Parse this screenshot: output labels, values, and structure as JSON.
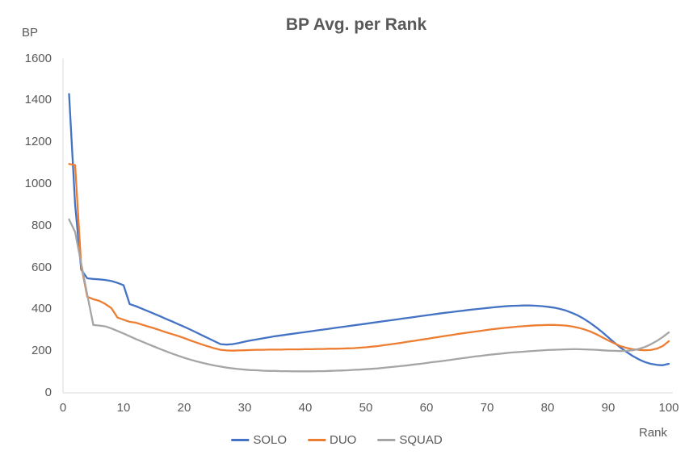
{
  "chart_data": {
    "type": "line",
    "title": "BP Avg. per Rank",
    "y_axis_title": "BP",
    "x_axis_title": "Rank",
    "xlabel": "Rank",
    "ylabel": "BP",
    "xlim": [
      0,
      100
    ],
    "ylim": [
      0,
      1600
    ],
    "x_ticks": [
      0,
      10,
      20,
      30,
      40,
      50,
      60,
      70,
      80,
      90,
      100
    ],
    "y_ticks": [
      0,
      200,
      400,
      600,
      800,
      1000,
      1200,
      1400,
      1600
    ],
    "grid": false,
    "legend_position": "bottom-center",
    "x_start": 1,
    "x_step": 1,
    "series": [
      {
        "name": "SOLO",
        "color": "#4472C4",
        "values": [
          1430,
          900,
          590,
          548,
          545,
          543,
          540,
          535,
          526,
          515,
          425,
          415,
          403,
          391,
          379,
          367,
          354,
          342,
          329,
          316,
          303,
          289,
          275,
          261,
          247,
          233,
          231,
          233,
          238,
          245,
          251,
          256,
          261,
          266,
          271,
          275,
          279,
          283,
          287,
          291,
          295,
          299,
          303,
          307,
          311,
          315,
          319,
          323,
          327,
          331,
          335,
          339,
          343,
          347,
          351,
          355,
          359,
          363,
          367,
          371,
          375,
          379,
          383,
          386,
          390,
          393,
          397,
          400,
          403,
          406,
          409,
          412,
          414,
          416,
          417,
          418,
          418,
          417,
          415,
          412,
          408,
          402,
          394,
          383,
          370,
          354,
          335,
          314,
          291,
          266,
          241,
          217,
          196,
          177,
          161,
          148,
          139,
          134,
          132,
          139
        ]
      },
      {
        "name": "DUO",
        "color": "#ED7D31",
        "values": [
          1095,
          1090,
          610,
          460,
          448,
          440,
          425,
          405,
          360,
          350,
          340,
          336,
          327,
          318,
          309,
          300,
          290,
          281,
          272,
          262,
          251,
          241,
          231,
          222,
          213,
          206,
          203,
          202,
          203,
          204,
          205,
          206,
          206,
          207,
          207,
          207,
          208,
          208,
          208,
          209,
          209,
          210,
          210,
          211,
          211,
          212,
          213,
          214,
          216,
          218,
          221,
          224,
          228,
          232,
          236,
          240,
          245,
          249,
          254,
          258,
          263,
          267,
          272,
          276,
          281,
          285,
          289,
          293,
          297,
          301,
          305,
          308,
          311,
          314,
          317,
          319,
          321,
          323,
          324,
          325,
          325,
          324,
          322,
          318,
          312,
          304,
          294,
          281,
          266,
          251,
          237,
          224,
          215,
          209,
          206,
          204,
          205,
          211,
          224,
          247
        ]
      },
      {
        "name": "SQUAD",
        "color": "#A5A5A5",
        "values": [
          830,
          770,
          620,
          470,
          325,
          322,
          318,
          308,
          296,
          284,
          271,
          258,
          246,
          234,
          222,
          210,
          199,
          188,
          178,
          168,
          159,
          151,
          144,
          137,
          131,
          126,
          121,
          117,
          114,
          111,
          109,
          108,
          106,
          105,
          105,
          104,
          104,
          103,
          103,
          103,
          103,
          104,
          104,
          105,
          106,
          107,
          108,
          110,
          111,
          113,
          115,
          117,
          120,
          123,
          126,
          129,
          132,
          136,
          139,
          143,
          147,
          150,
          154,
          158,
          162,
          166,
          170,
          174,
          177,
          181,
          184,
          187,
          190,
          193,
          195,
          197,
          199,
          201,
          203,
          205,
          206,
          207,
          208,
          209,
          209,
          208,
          207,
          206,
          204,
          202,
          201,
          200,
          201,
          204,
          210,
          219,
          232,
          248,
          267,
          289
        ]
      }
    ]
  },
  "colors": {
    "text": "#595959",
    "axis_line": "#D9D9D9",
    "background": "#FFFFFF"
  }
}
